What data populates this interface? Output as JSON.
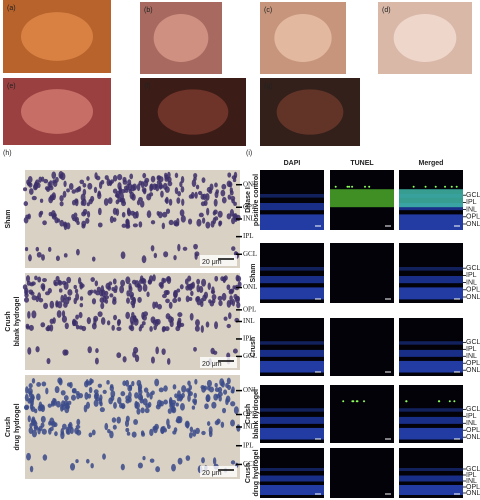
{
  "photo_labels": [
    "(a)",
    "(b)",
    "(c)",
    "(d)",
    "(e)",
    "(f)",
    "(g)"
  ],
  "histology": {
    "label": "(h)",
    "scale": "20 μm",
    "rows": [
      {
        "name": [
          "Sham"
        ],
        "layers": [
          "ONL",
          "OPL",
          "INL",
          "IPL",
          "GCL"
        ]
      },
      {
        "name": [
          "Crush",
          "blank hydrogel"
        ],
        "layers": [
          "ONL",
          "OPL",
          "INL",
          "IPL",
          "GCL"
        ]
      },
      {
        "name": [
          "Crush",
          "drug hydrogel"
        ],
        "layers": [
          "ONL",
          "OPL",
          "INL",
          "IPL",
          "GCL"
        ]
      }
    ]
  },
  "fluorescence": {
    "label": "(i)",
    "columns": [
      "DAPI",
      "TUNEL",
      "Merged"
    ],
    "rows": [
      {
        "name": [
          "DNase I",
          "positive control"
        ],
        "layers": [
          "GCL",
          "IPL",
          "INL",
          "OPL",
          "ONL"
        ]
      },
      {
        "name": [
          "Sham"
        ],
        "layers": [
          "GCL",
          "IPL",
          "INL",
          "OPL",
          "ONL"
        ]
      },
      {
        "name": [
          "Crush"
        ],
        "layers": [
          "GCL",
          "IPL",
          "INL",
          "OPL",
          "ONL"
        ]
      },
      {
        "name": [
          "Crush",
          "blank hydrogel"
        ],
        "layers": [
          "GCL",
          "IPL",
          "INL",
          "OPL",
          "ONL"
        ]
      },
      {
        "name": [
          "Crush",
          "drug hydrogel"
        ],
        "layers": [
          "GCL",
          "IPL",
          "INL",
          "OPL",
          "ONL"
        ]
      }
    ]
  }
}
